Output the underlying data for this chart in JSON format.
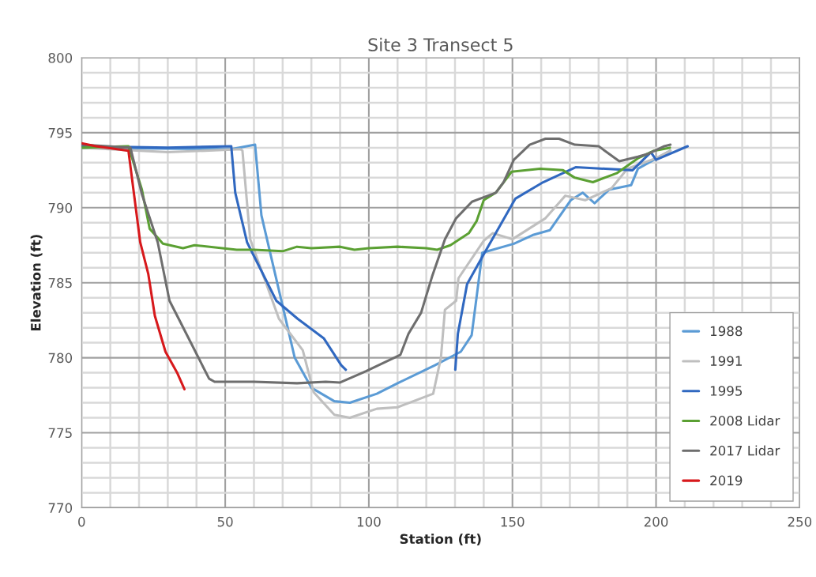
{
  "chart_data": {
    "type": "line",
    "title": "Site 3 Transect 5",
    "xlabel": "Station (ft)",
    "ylabel": "Elevation (ft)",
    "xlim": [
      0,
      250
    ],
    "ylim": [
      770,
      800
    ],
    "xticks": [
      0,
      {
        "value": 10,
        "label": null
      },
      {
        "value": 20,
        "label": null
      },
      {
        "value": 30,
        "label": null
      },
      {
        "value": 40,
        "label": null
      },
      50,
      {
        "value": 60,
        "label": null
      },
      {
        "value": 70,
        "label": null
      },
      {
        "value": 80,
        "label": null
      },
      {
        "value": 90,
        "label": null
      },
      100,
      {
        "value": 110,
        "label": null
      },
      {
        "value": 120,
        "label": null
      },
      {
        "value": 130,
        "label": null
      },
      {
        "value": 140,
        "label": null
      },
      150,
      {
        "value": 160,
        "label": null
      },
      {
        "value": 170,
        "label": null
      },
      {
        "value": 180,
        "label": null
      },
      {
        "value": 190,
        "label": null
      },
      200,
      {
        "value": 210,
        "label": null
      },
      {
        "value": 220,
        "label": null
      },
      {
        "value": 230,
        "label": null
      },
      {
        "value": 240,
        "label": null
      },
      250
    ],
    "yticks": [
      770,
      {
        "value": 771,
        "label": null
      },
      {
        "value": 772,
        "label": null
      },
      {
        "value": 773,
        "label": null
      },
      {
        "value": 774,
        "label": null
      },
      775,
      {
        "value": 776,
        "label": null
      },
      {
        "value": 777,
        "label": null
      },
      {
        "value": 778,
        "label": null
      },
      {
        "value": 779,
        "label": null
      },
      780,
      {
        "value": 781,
        "label": null
      },
      {
        "value": 782,
        "label": null
      },
      {
        "value": 783,
        "label": null
      },
      {
        "value": 784,
        "label": null
      },
      785,
      {
        "value": 786,
        "label": null
      },
      {
        "value": 787,
        "label": null
      },
      {
        "value": 788,
        "label": null
      },
      {
        "value": 789,
        "label": null
      },
      790,
      {
        "value": 791,
        "label": null
      },
      {
        "value": 792,
        "label": null
      },
      {
        "value": 793,
        "label": null
      },
      {
        "value": 794,
        "label": null
      },
      795,
      {
        "value": 796,
        "label": null
      },
      {
        "value": 797,
        "label": null
      },
      {
        "value": 798,
        "label": null
      },
      {
        "value": 799,
        "label": null
      },
      800
    ],
    "grid": true,
    "legend": "bottom right",
    "marker": "none",
    "line_style": "solid",
    "series": [
      {
        "name": "1988",
        "color": "#5b9bd5",
        "x": [
          0,
          52,
          60.4,
          62.6,
          74.2,
          80,
          88,
          93.4,
          102.8,
          110,
          123,
          132,
          135.8,
          139.5,
          150.5,
          157.4,
          163,
          170.3,
          174.5,
          178.6,
          183.6,
          191.3,
          193.7,
          205
        ],
        "values": [
          794,
          793.9,
          794.2,
          789.5,
          780,
          778,
          777.1,
          777,
          777.6,
          778.3,
          779.5,
          780.4,
          781.5,
          787,
          787.6,
          788.2,
          788.5,
          790.5,
          791,
          790.3,
          791.2,
          791.5,
          792.6,
          793.8
        ]
      },
      {
        "name": "1991",
        "color": "#bfbfbf",
        "x": [
          0,
          30,
          55.4,
          56,
          58.7,
          68.7,
          77,
          80.8,
          88,
          93.4,
          102.8,
          110,
          122.4,
          125.1,
          126.5,
          130.4,
          131.2,
          140,
          143.1,
          150,
          161.5,
          168.4,
          175.3,
          184.5,
          190,
          200,
          205
        ],
        "values": [
          794,
          793.7,
          793.9,
          793.8,
          787.9,
          782.6,
          780.5,
          777.7,
          776.2,
          776,
          776.6,
          776.7,
          777.6,
          780,
          783.2,
          783.8,
          785.3,
          787.8,
          788.3,
          787.9,
          789.3,
          790.8,
          790.5,
          791.3,
          792.6,
          793.3,
          793.8
        ]
      },
      {
        "name": "1995",
        "color": "#3068c0",
        "x": [
          0,
          30,
          52.1,
          53.5,
          57.6,
          67.8,
          75.2,
          84.3,
          90.4,
          92,
          111,
          130.1,
          131,
          134.2,
          140.3,
          151,
          160.7,
          172,
          191.8,
          198.2,
          200,
          211
        ],
        "values": [
          794.1,
          794,
          794.1,
          791,
          787.7,
          783.8,
          782.6,
          781.3,
          779.5,
          779.2,
          null,
          779.2,
          781.6,
          784.9,
          787,
          790.6,
          791.7,
          792.7,
          792.5,
          793.7,
          793.2,
          794.1
        ]
      },
      {
        "name": "2008 Lidar",
        "color": "#5ba033",
        "x": [
          0,
          16.3,
          21,
          23.7,
          28.3,
          35.3,
          39.3,
          54,
          60,
          70,
          75,
          80,
          90,
          95,
          100,
          110,
          120,
          123.8,
          128.4,
          134.8,
          137.5,
          140,
          144.2,
          149.7,
          159.6,
          167.6,
          171.7,
          178,
          186.3,
          193.7,
          199.3,
          204.8
        ],
        "values": [
          794,
          794.1,
          791.2,
          788.6,
          787.6,
          787.3,
          787.5,
          787.2,
          787.2,
          787.1,
          787.4,
          787.3,
          787.4,
          787.2,
          787.3,
          787.4,
          787.3,
          787.2,
          787.5,
          788.3,
          789.1,
          790.5,
          791,
          792.4,
          792.6,
          792.5,
          792,
          791.7,
          792.3,
          793.3,
          793.8,
          794
        ]
      },
      {
        "name": "2017 Lidar",
        "color": "#6e6e6e",
        "x": [
          0,
          17,
          21,
          26.5,
          30.6,
          33.8,
          44.4,
          46.3,
          60,
          75,
          85,
          90,
          95.4,
          99,
          104.5,
          111,
          113.8,
          118.2,
          122,
          126.5,
          130.4,
          135.9,
          144.2,
          146.9,
          150.5,
          156,
          161.5,
          166.2,
          171.7,
          180,
          187.2,
          193.7,
          197.4,
          202.9,
          205
        ],
        "values": [
          794.2,
          794,
          790.9,
          787.7,
          783.8,
          782.6,
          778.6,
          778.4,
          778.4,
          778.3,
          778.4,
          778.35,
          778.8,
          779.1,
          779.6,
          780.2,
          781.6,
          783,
          785.4,
          787.9,
          789.3,
          790.4,
          791,
          791.7,
          793.2,
          794.2,
          794.6,
          794.6,
          794.2,
          794.1,
          793.1,
          793.4,
          793.6,
          794.1,
          794.2
        ]
      },
      {
        "name": "2019",
        "color": "#d7191c",
        "x": [
          0,
          5,
          16.3,
          20.4,
          23.2,
          25.5,
          29.2,
          33.4,
          35.8
        ],
        "values": [
          794.3,
          794.1,
          793.8,
          787.7,
          785.6,
          782.8,
          780.4,
          778.95,
          777.9
        ]
      }
    ]
  }
}
